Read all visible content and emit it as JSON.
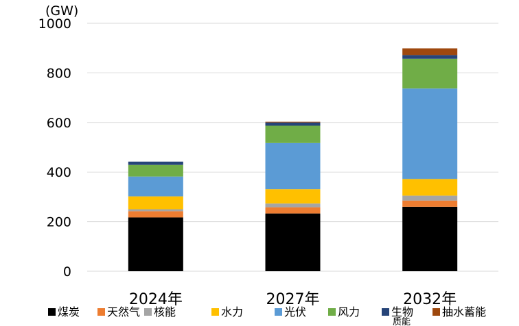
{
  "chart_data": {
    "type": "bar",
    "stacked": true,
    "unit_label": "(GW)",
    "categories": [
      "2024年",
      "2027年",
      "2032年"
    ],
    "ylim": [
      0,
      1000
    ],
    "yticks": [
      0,
      200,
      400,
      600,
      800,
      1000
    ],
    "grid": true,
    "legend_position": "bottom",
    "series": [
      {
        "name": "煤炭",
        "color": "#000000",
        "values": [
          217,
          233,
          260
        ]
      },
      {
        "name": "天然气",
        "color": "#ed7d31",
        "values": [
          25,
          25,
          25
        ]
      },
      {
        "name": "核能",
        "color": "#a5a5a5",
        "values": [
          8,
          15,
          20
        ]
      },
      {
        "name": "水力",
        "color": "#ffc000",
        "values": [
          52,
          58,
          67
        ]
      },
      {
        "name": "光伏",
        "color": "#5b9bd5",
        "values": [
          80,
          186,
          365
        ]
      },
      {
        "name": "风力",
        "color": "#70ad47",
        "values": [
          47,
          70,
          120
        ]
      },
      {
        "name": "生物质能",
        "color": "#264478",
        "values": [
          13,
          13,
          15
        ]
      },
      {
        "name": "抽水蓄能",
        "color": "#9e480e",
        "values": [
          0,
          3,
          27
        ]
      }
    ]
  }
}
